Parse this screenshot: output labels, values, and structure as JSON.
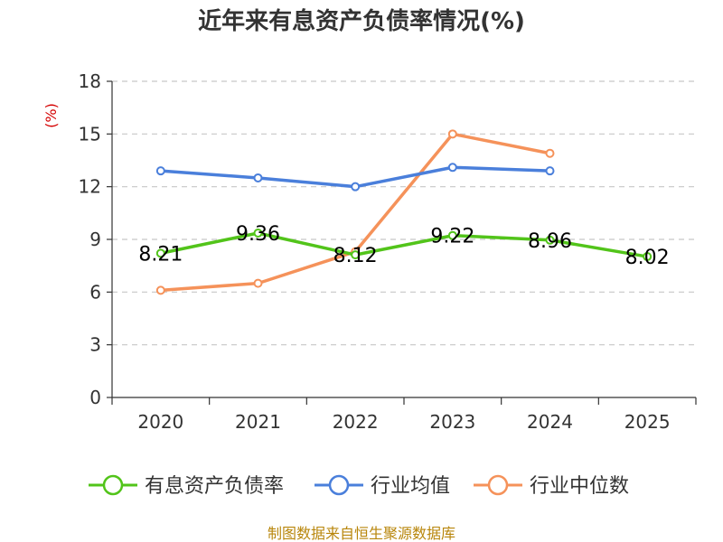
{
  "chart_data": {
    "type": "line",
    "title": "近年来有息资产负债率情况(%)",
    "ylabel": "(%)",
    "categories": [
      "2020",
      "2021",
      "2022",
      "2023",
      "2024",
      "2025"
    ],
    "ylim": [
      0,
      18
    ],
    "yticks": [
      0,
      3,
      6,
      9,
      12,
      15,
      18
    ],
    "grid": true,
    "legend_position": "bottom",
    "series": [
      {
        "name": "有息资产负债率",
        "color": "#52c41a",
        "values": [
          8.21,
          9.36,
          8.12,
          9.22,
          8.96,
          8.02
        ],
        "show_labels": true
      },
      {
        "name": "行业均值",
        "color": "#4a7fdb",
        "values": [
          12.9,
          12.5,
          12.0,
          13.1,
          12.9,
          null
        ],
        "show_labels": false
      },
      {
        "name": "行业中位数",
        "color": "#f5925a",
        "values": [
          6.1,
          6.5,
          8.3,
          15.0,
          13.9,
          null
        ],
        "show_labels": false
      }
    ],
    "source": "制图数据来自恒生聚源数据库"
  }
}
